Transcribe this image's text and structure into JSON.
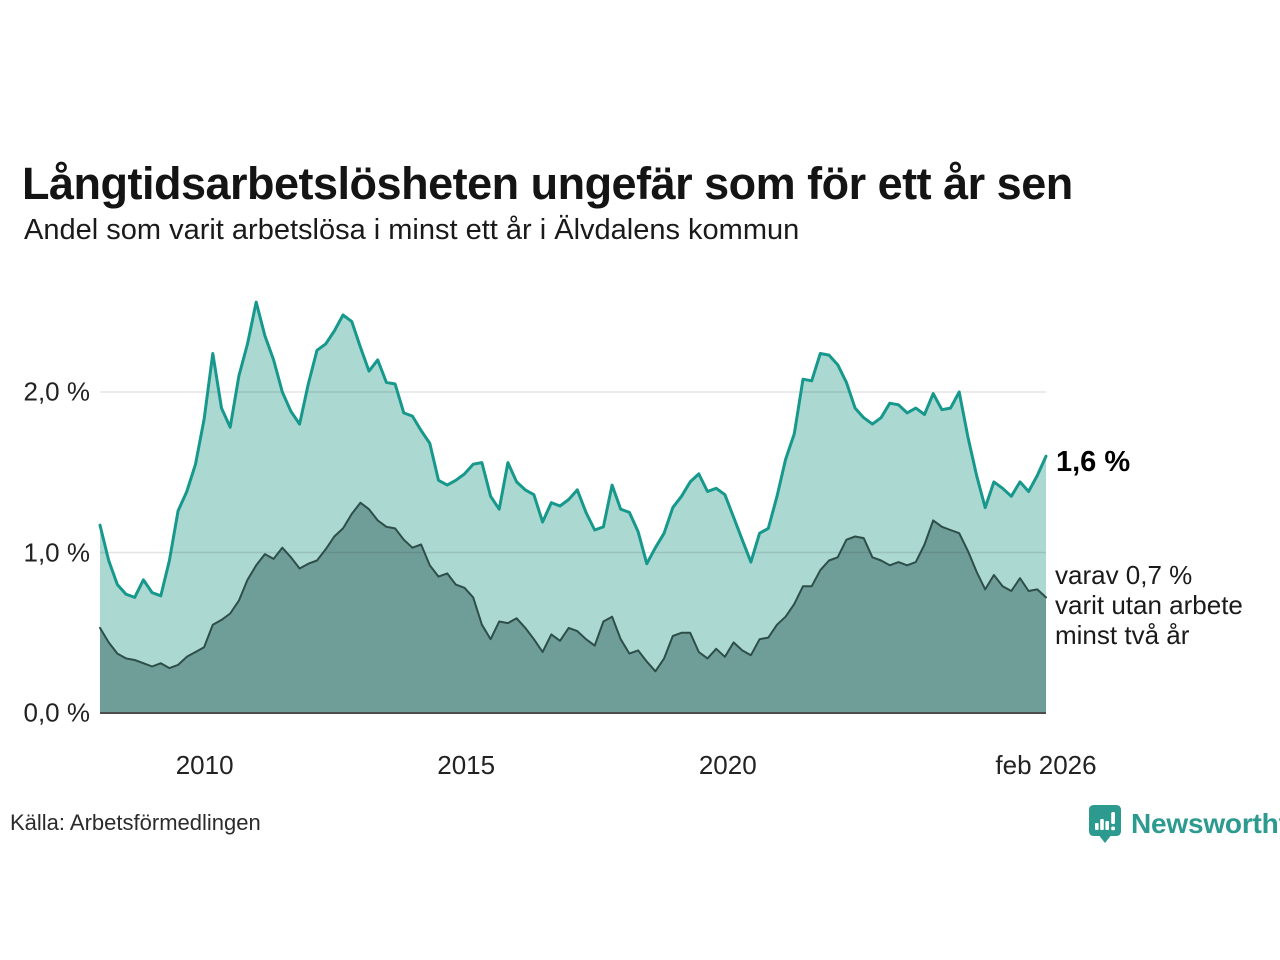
{
  "header": {
    "title": "Långtidsarbetslösheten ungefär som för ett år sen",
    "subtitle": "Andel som varit arbetslösa i minst ett år i Älvdalens kommun"
  },
  "chart_data": {
    "type": "area",
    "title": "Långtidsarbetslösheten ungefär som för ett år sen",
    "subtitle": "Andel som varit arbetslösa i minst ett år i Älvdalens kommun",
    "source": "Källa: Arbetsförmedlingen",
    "unit": "%",
    "x_start": 2008.0,
    "x_end": 2026.083,
    "ylim": [
      0,
      2.75
    ],
    "grid": "horizontal",
    "legend_position": "right-annotations",
    "x_ticks": [
      {
        "year": 2010,
        "label": "2010"
      },
      {
        "year": 2015,
        "label": "2015"
      },
      {
        "year": 2020,
        "label": "2020"
      },
      {
        "year": 2026.083,
        "label": "feb 2026"
      }
    ],
    "y_ticks": [
      {
        "value": 0,
        "label": "0,0 %"
      },
      {
        "value": 1,
        "label": "1,0 %"
      },
      {
        "value": 2,
        "label": "2,0 %"
      }
    ],
    "series": [
      {
        "name": "Andel som varit arbetslösa i minst ett år",
        "end_label": "1,6 %",
        "line_color": "#17988c",
        "fill_color": "#abd8d1",
        "line_width": 3,
        "values": [
          1.17,
          0.95,
          0.8,
          0.74,
          0.72,
          0.83,
          0.75,
          0.73,
          0.95,
          1.26,
          1.38,
          1.55,
          1.83,
          2.24,
          1.9,
          1.78,
          2.1,
          2.3,
          2.56,
          2.35,
          2.2,
          2.0,
          1.88,
          1.8,
          2.05,
          2.26,
          2.3,
          2.38,
          2.48,
          2.44,
          2.28,
          2.13,
          2.2,
          2.06,
          2.05,
          1.87,
          1.85,
          1.76,
          1.68,
          1.45,
          1.42,
          1.45,
          1.49,
          1.55,
          1.56,
          1.35,
          1.27,
          1.56,
          1.44,
          1.39,
          1.36,
          1.19,
          1.31,
          1.29,
          1.33,
          1.39,
          1.25,
          1.14,
          1.16,
          1.42,
          1.27,
          1.25,
          1.13,
          0.93,
          1.03,
          1.12,
          1.28,
          1.35,
          1.44,
          1.49,
          1.38,
          1.4,
          1.36,
          1.22,
          1.08,
          0.94,
          1.12,
          1.15,
          1.35,
          1.58,
          1.74,
          2.08,
          2.07,
          2.24,
          2.23,
          2.17,
          2.06,
          1.9,
          1.84,
          1.8,
          1.84,
          1.93,
          1.92,
          1.87,
          1.9,
          1.86,
          1.99,
          1.89,
          1.9,
          2.0,
          1.72,
          1.48,
          1.28,
          1.44,
          1.4,
          1.35,
          1.44,
          1.38,
          1.48,
          1.6
        ]
      },
      {
        "name": "varav utan arbete minst två år",
        "end_label": "varav 0,7 % varit utan arbete minst två år",
        "line_color": "#2e4e49",
        "fill_color": "#6f9e99",
        "line_width": 2,
        "values": [
          0.53,
          0.44,
          0.37,
          0.34,
          0.33,
          0.31,
          0.29,
          0.31,
          0.28,
          0.3,
          0.35,
          0.38,
          0.41,
          0.55,
          0.58,
          0.62,
          0.7,
          0.83,
          0.92,
          0.99,
          0.96,
          1.03,
          0.97,
          0.9,
          0.93,
          0.95,
          1.02,
          1.1,
          1.15,
          1.24,
          1.31,
          1.27,
          1.2,
          1.16,
          1.15,
          1.08,
          1.03,
          1.05,
          0.92,
          0.85,
          0.87,
          0.8,
          0.78,
          0.72,
          0.55,
          0.46,
          0.57,
          0.56,
          0.59,
          0.53,
          0.46,
          0.38,
          0.49,
          0.45,
          0.53,
          0.51,
          0.46,
          0.42,
          0.57,
          0.6,
          0.46,
          0.37,
          0.39,
          0.32,
          0.26,
          0.34,
          0.48,
          0.5,
          0.5,
          0.38,
          0.34,
          0.4,
          0.35,
          0.44,
          0.39,
          0.36,
          0.46,
          0.47,
          0.55,
          0.6,
          0.68,
          0.79,
          0.79,
          0.89,
          0.95,
          0.97,
          1.08,
          1.1,
          1.09,
          0.97,
          0.95,
          0.92,
          0.94,
          0.92,
          0.94,
          1.05,
          1.2,
          1.16,
          1.14,
          1.12,
          1.01,
          0.88,
          0.77,
          0.86,
          0.79,
          0.76,
          0.84,
          0.76,
          0.77,
          0.72
        ]
      }
    ]
  },
  "annotations": {
    "latest_value": "1,6 %",
    "secondary": [
      "varav 0,7 %",
      "varit utan arbete",
      "minst två år"
    ]
  },
  "footer": {
    "source": "Källa: Arbetsförmedlingen",
    "brand": "Newsworthy"
  },
  "colors": {
    "accent_teal": "#17988c",
    "light_fill": "#abd8d1",
    "dark_fill": "#6f9e99",
    "dark_line": "#2e4e49",
    "grid": "rgba(30,30,30,0.12)",
    "baseline": "#4d4d4d",
    "logo_teal": "#2d9a8f"
  }
}
